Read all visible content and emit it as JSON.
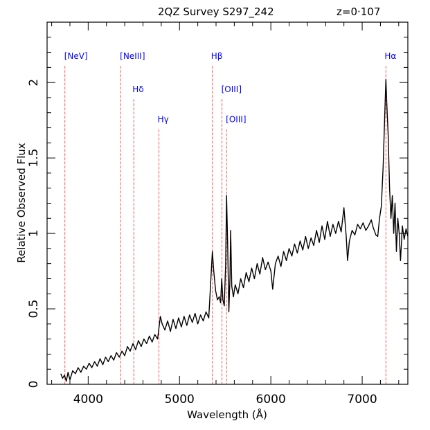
{
  "chart_data": {
    "type": "line",
    "title": "2QZ Survey S297_242",
    "redshift_label": "z=0·107",
    "xlabel": "Wavelength (Å)",
    "ylabel": "Relative Observed Flux",
    "xlim": [
      3550,
      7500
    ],
    "ylim": [
      0,
      2.4
    ],
    "xticks": [
      4000,
      5000,
      6000,
      7000
    ],
    "xtick_labels": [
      "4000",
      "5000",
      "6000",
      "7000"
    ],
    "yticks": [
      0,
      0.5,
      1,
      1.5,
      2
    ],
    "ytick_labels": [
      "0",
      "0.5",
      "1",
      "1.5",
      "2"
    ],
    "grid": false,
    "colors": {
      "spectrum": "#000000",
      "lines": "#ff5555",
      "labels": "#0000ff"
    },
    "emission_lines": [
      {
        "label": "[NeV]",
        "x": 3745,
        "top": 2.11
      },
      {
        "label": "[NeIII]",
        "x": 4355,
        "top": 2.11
      },
      {
        "label": "Hδ",
        "x": 4500,
        "top": 1.89
      },
      {
        "label": "Hγ",
        "x": 4775,
        "top": 1.69
      },
      {
        "label": "Hβ",
        "x": 5360,
        "top": 2.11
      },
      {
        "label": "[OIII]",
        "x": 5465,
        "top": 1.89
      },
      {
        "label": "[OIII]",
        "x": 5515,
        "top": 1.69
      },
      {
        "label": "Hα",
        "x": 7260,
        "top": 2.11
      }
    ],
    "series": [
      {
        "name": "spectrum",
        "x": [
          3700,
          3720,
          3740,
          3760,
          3780,
          3800,
          3830,
          3860,
          3890,
          3920,
          3950,
          3980,
          4010,
          4040,
          4070,
          4100,
          4130,
          4160,
          4190,
          4220,
          4250,
          4280,
          4310,
          4340,
          4370,
          4400,
          4430,
          4460,
          4490,
          4520,
          4550,
          4580,
          4610,
          4640,
          4670,
          4700,
          4730,
          4760,
          4790,
          4810,
          4840,
          4870,
          4900,
          4930,
          4960,
          4990,
          5020,
          5050,
          5080,
          5110,
          5140,
          5170,
          5200,
          5230,
          5260,
          5290,
          5320,
          5345,
          5360,
          5375,
          5395,
          5415,
          5435,
          5450,
          5462,
          5475,
          5490,
          5505,
          5515,
          5528,
          5540,
          5552,
          5560,
          5572,
          5590,
          5610,
          5640,
          5670,
          5700,
          5730,
          5760,
          5790,
          5820,
          5850,
          5880,
          5910,
          5940,
          5970,
          6000,
          6020,
          6050,
          6080,
          6110,
          6140,
          6170,
          6200,
          6230,
          6260,
          6290,
          6320,
          6350,
          6380,
          6410,
          6440,
          6470,
          6500,
          6530,
          6560,
          6590,
          6620,
          6650,
          6680,
          6710,
          6740,
          6770,
          6800,
          6825,
          6840,
          6860,
          6890,
          6920,
          6950,
          6980,
          7010,
          7040,
          7070,
          7100,
          7120,
          7150,
          7170,
          7190,
          7210,
          7230,
          7245,
          7260,
          7270,
          7285,
          7300,
          7315,
          7330,
          7345,
          7360,
          7375,
          7390,
          7405,
          7420,
          7440,
          7460,
          7480,
          7500
        ],
        "y": [
          0.07,
          0.04,
          0.06,
          0.02,
          0.08,
          0.03,
          0.09,
          0.07,
          0.11,
          0.08,
          0.12,
          0.1,
          0.14,
          0.11,
          0.15,
          0.12,
          0.17,
          0.13,
          0.18,
          0.15,
          0.19,
          0.16,
          0.21,
          0.18,
          0.22,
          0.19,
          0.25,
          0.22,
          0.27,
          0.23,
          0.29,
          0.25,
          0.3,
          0.27,
          0.32,
          0.28,
          0.33,
          0.3,
          0.45,
          0.4,
          0.36,
          0.42,
          0.35,
          0.43,
          0.37,
          0.44,
          0.38,
          0.45,
          0.39,
          0.46,
          0.41,
          0.47,
          0.4,
          0.46,
          0.42,
          0.48,
          0.44,
          0.72,
          0.88,
          0.75,
          0.62,
          0.56,
          0.58,
          0.54,
          0.7,
          0.56,
          0.52,
          0.8,
          1.25,
          0.9,
          0.48,
          0.7,
          1.02,
          0.65,
          0.58,
          0.66,
          0.6,
          0.7,
          0.64,
          0.74,
          0.68,
          0.77,
          0.7,
          0.8,
          0.73,
          0.84,
          0.76,
          0.81,
          0.75,
          0.63,
          0.8,
          0.85,
          0.78,
          0.88,
          0.82,
          0.9,
          0.85,
          0.93,
          0.87,
          0.95,
          0.89,
          0.98,
          0.9,
          0.97,
          0.92,
          1.02,
          0.94,
          1.05,
          0.96,
          1.08,
          0.98,
          1.06,
          1.0,
          1.08,
          1.01,
          1.17,
          0.98,
          0.82,
          0.95,
          1.02,
          0.99,
          1.06,
          1.03,
          1.07,
          1.02,
          1.05,
          1.09,
          1.04,
          0.99,
          0.98,
          1.1,
          1.18,
          1.45,
          1.75,
          2.02,
          1.85,
          1.65,
          1.3,
          1.1,
          1.25,
          1.0,
          1.2,
          0.88,
          1.1,
          1.0,
          0.82,
          1.05,
          0.96,
          1.03,
          0.98
        ]
      }
    ]
  }
}
